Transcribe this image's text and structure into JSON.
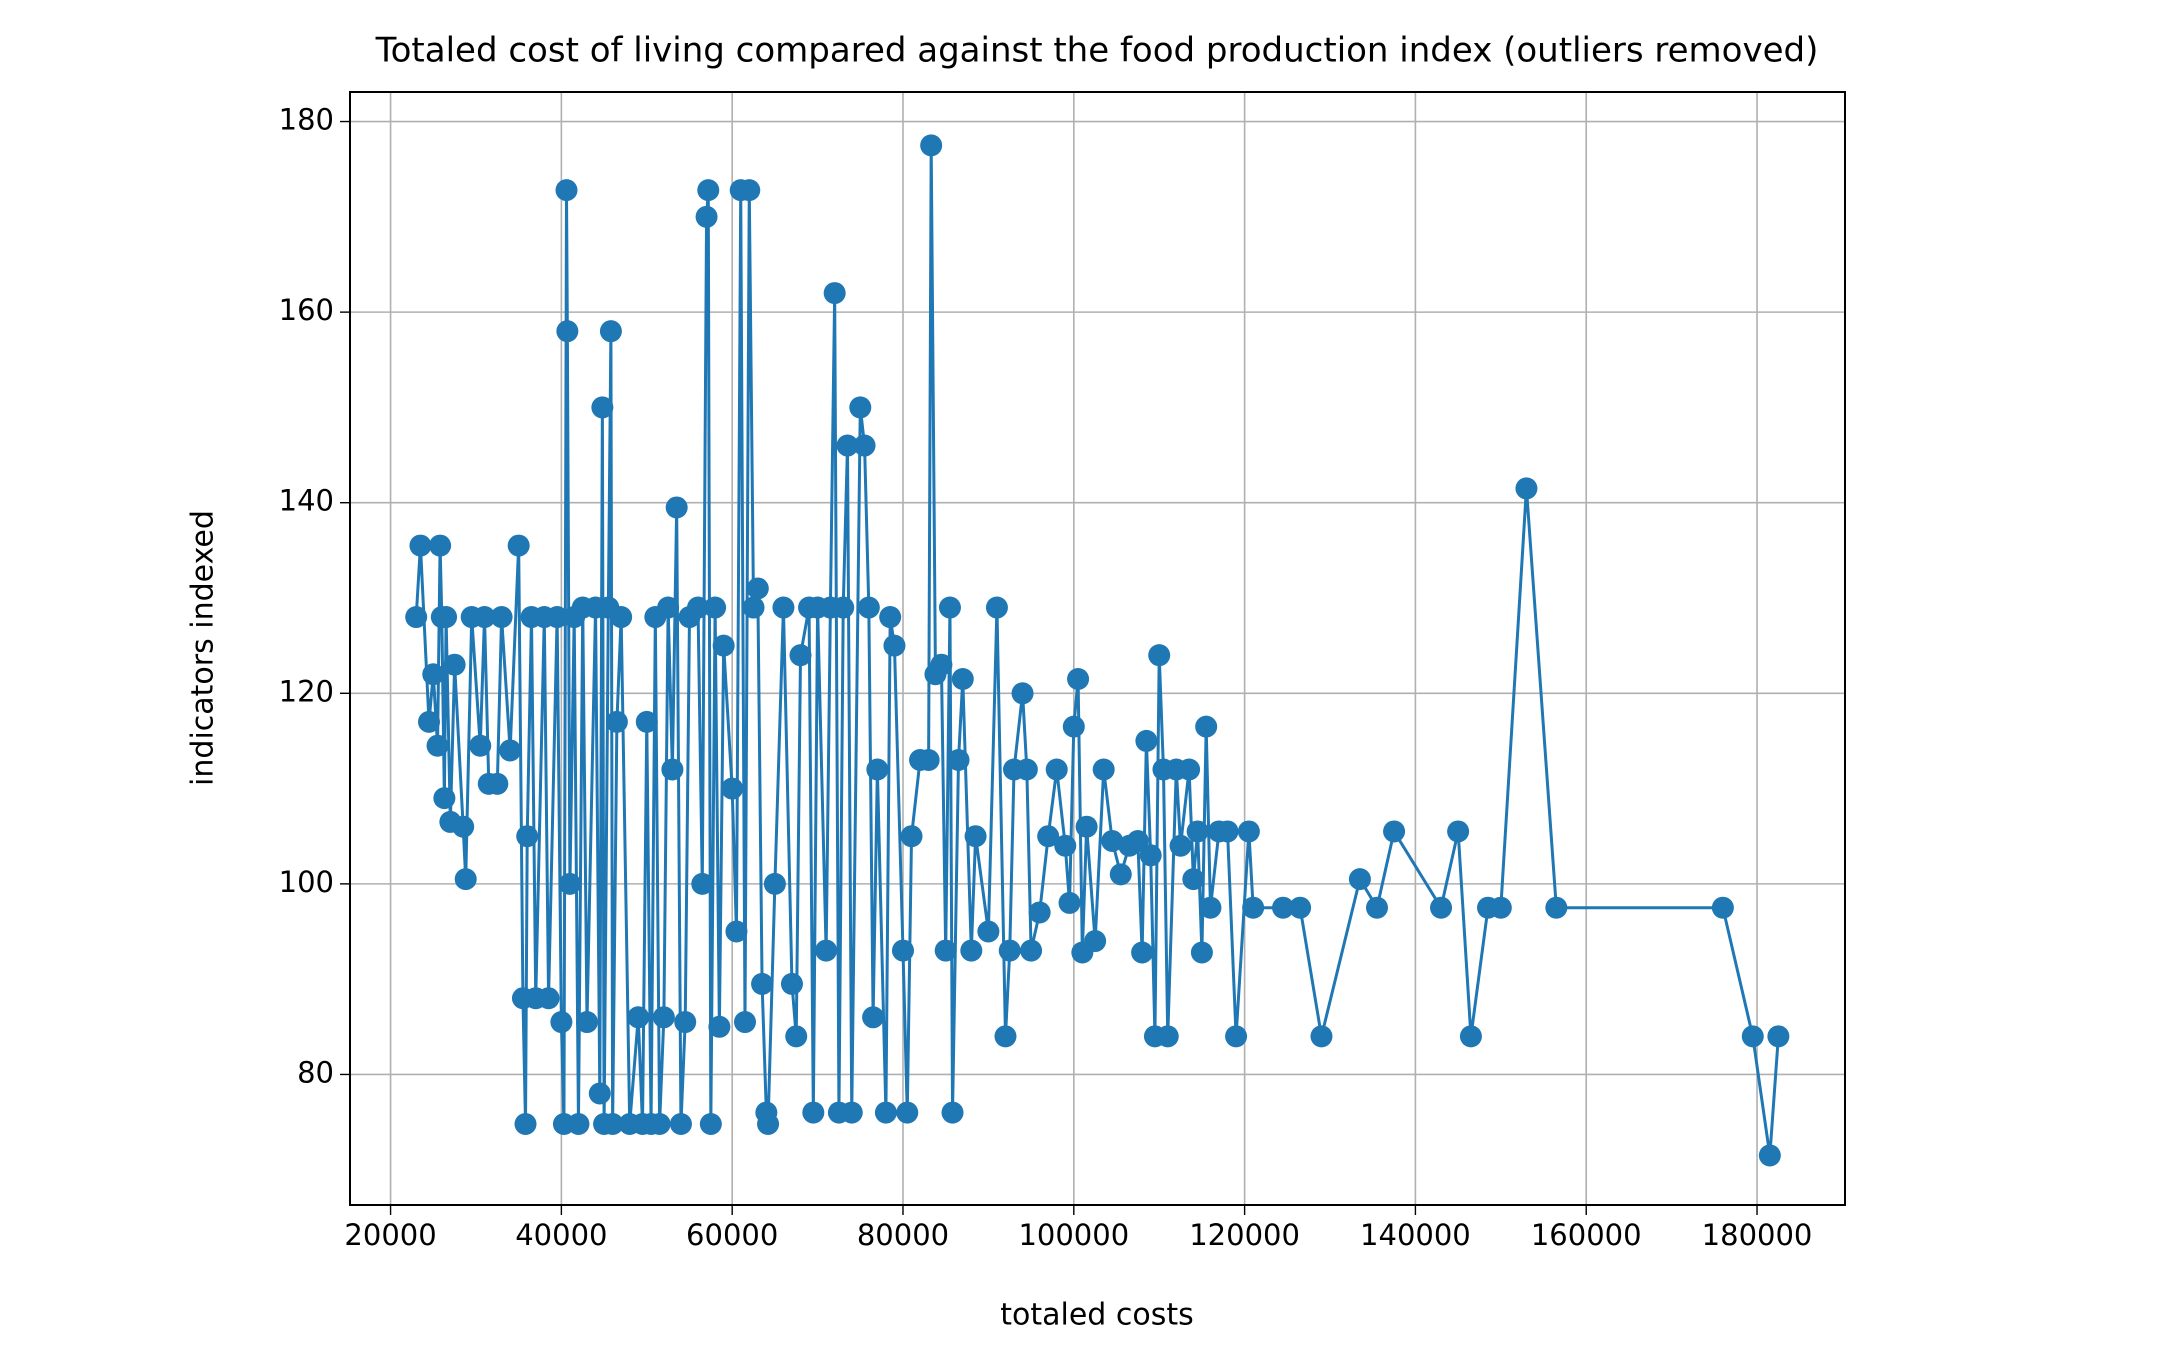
{
  "chart_data": {
    "type": "line",
    "title": "Totaled cost of living compared against the food production index (outliers removed)",
    "x_label": "totaled costs",
    "y_label": "indicators indexed",
    "color": "#1f77b4",
    "grid": true,
    "markers": true,
    "xlim": [
      15250,
      190300
    ],
    "ylim": [
      66.3,
      183.1
    ],
    "xticks": [
      20000,
      40000,
      60000,
      80000,
      100000,
      120000,
      140000,
      160000,
      180000
    ],
    "yticks": [
      80,
      100,
      120,
      140,
      160,
      180
    ],
    "x": [
      23000,
      23500,
      24500,
      25000,
      25500,
      25800,
      26000,
      26300,
      26500,
      27000,
      27500,
      28500,
      28800,
      29500,
      30500,
      31000,
      31500,
      32500,
      33000,
      34000,
      35000,
      35500,
      35800,
      36000,
      36500,
      37000,
      38000,
      38500,
      39500,
      40000,
      40300,
      40600,
      40700,
      41000,
      41500,
      42000,
      42500,
      43000,
      44000,
      44500,
      44800,
      45000,
      45500,
      45800,
      46000,
      46500,
      47000,
      48000,
      49000,
      49500,
      50000,
      50500,
      51000,
      51500,
      52000,
      52500,
      53000,
      53500,
      54000,
      54500,
      55000,
      56000,
      56500,
      57000,
      57200,
      57500,
      58000,
      58500,
      59000,
      60000,
      60500,
      61000,
      61500,
      62000,
      62500,
      63000,
      63500,
      64000,
      64200,
      65000,
      66000,
      67000,
      67500,
      68000,
      69000,
      69500,
      70000,
      71000,
      71500,
      72000,
      72500,
      73000,
      73500,
      74000,
      75000,
      75500,
      76000,
      76500,
      77000,
      78000,
      78500,
      79000,
      80000,
      80500,
      81000,
      82000,
      83000,
      83300,
      83800,
      84500,
      85000,
      85500,
      85800,
      86500,
      87000,
      88000,
      88500,
      90000,
      91000,
      92000,
      92500,
      93000,
      94000,
      94500,
      95000,
      96000,
      97000,
      98000,
      99000,
      99500,
      100000,
      100500,
      101000,
      101500,
      102500,
      103500,
      104500,
      105500,
      106500,
      107500,
      108000,
      108500,
      109000,
      109500,
      110000,
      110500,
      111000,
      112000,
      112500,
      113500,
      114000,
      114500,
      115000,
      115500,
      116000,
      117000,
      118000,
      119000,
      120500,
      121000,
      124500,
      126500,
      129000,
      133500,
      135500,
      137500,
      143000,
      145000,
      146500,
      148500,
      150000,
      153000,
      156500,
      176000,
      179500,
      181500,
      182500
    ],
    "values": [
      128,
      135.5,
      117,
      122,
      114.5,
      135.5,
      128,
      109,
      128,
      106.5,
      123,
      106,
      100.5,
      128,
      114.5,
      128,
      110.5,
      110.5,
      128,
      114,
      135.5,
      88,
      74.8,
      105,
      128,
      88,
      128,
      88,
      128,
      85.5,
      74.8,
      172.8,
      158,
      100,
      128,
      74.8,
      129,
      85.5,
      129,
      78,
      150,
      74.8,
      129,
      158,
      74.8,
      117,
      128,
      74.8,
      86,
      74.8,
      117,
      74.8,
      128,
      74.8,
      86,
      129,
      112,
      139.5,
      74.8,
      85.5,
      128,
      129,
      100,
      170,
      172.8,
      74.8,
      129,
      85,
      125,
      110,
      95,
      172.8,
      85.5,
      172.8,
      129,
      131,
      89.5,
      76,
      74.8,
      100,
      129,
      89.5,
      84,
      124,
      129,
      76,
      129,
      93,
      129,
      162,
      76,
      129,
      146,
      76,
      150,
      146,
      129,
      86,
      112,
      76,
      128,
      125,
      93,
      76,
      105,
      113,
      113,
      177.5,
      122,
      123,
      93,
      129,
      76,
      113,
      121.5,
      93,
      105,
      95,
      129,
      84,
      93,
      112,
      120,
      112,
      93,
      97,
      105,
      112,
      104,
      98,
      116.5,
      121.5,
      92.8,
      106,
      94,
      112,
      104.5,
      101,
      104,
      104.5,
      92.8,
      115,
      103,
      84,
      124,
      112,
      84,
      112,
      104,
      112,
      100.5,
      105.5,
      92.8,
      116.5,
      97.5,
      105.5,
      105.5,
      84,
      105.5,
      97.5,
      97.5,
      97.5,
      84,
      100.5,
      97.5,
      105.5,
      97.5,
      105.5,
      84,
      97.5,
      97.5,
      141.5,
      97.5,
      97.5,
      84,
      71.5,
      84
    ]
  }
}
